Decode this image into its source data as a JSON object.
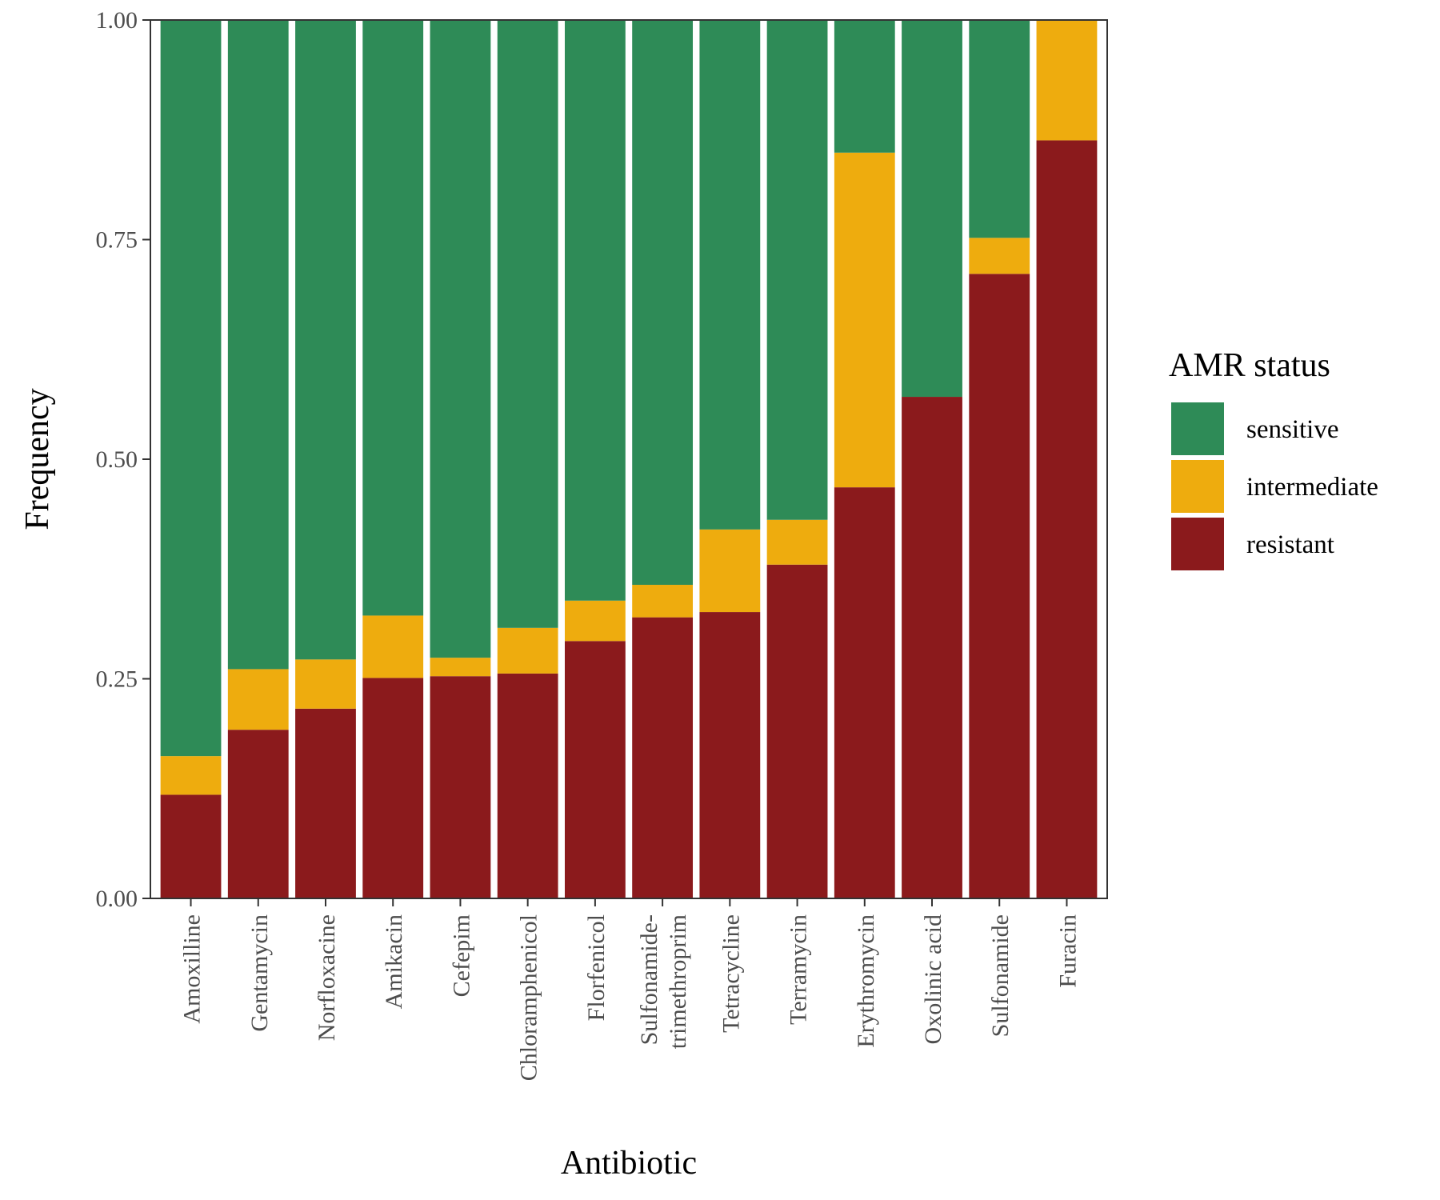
{
  "chart_data": {
    "type": "bar",
    "stacked": true,
    "xlabel": "Antibiotic",
    "ylabel": "Frequency",
    "ylim": [
      0,
      1
    ],
    "yticks": [
      "0.00",
      "0.25",
      "0.50",
      "0.75",
      "1.00"
    ],
    "grid": false,
    "categories": [
      "Amoxilline",
      "Gentamycin",
      "Norfloxacine",
      "Amikacin",
      "Cefepim",
      "Chloramphenicol",
      "Florfenicol",
      "Sulfonamide-\ntrimethroprim",
      "Tetracycline",
      "Terramycin",
      "Erythromycin",
      "Oxolinic acid",
      "Sulfonamide",
      "Furacin"
    ],
    "series": [
      {
        "name": "resistant",
        "color": "#8b1a1c",
        "values": [
          0.118,
          0.192,
          0.216,
          0.251,
          0.253,
          0.256,
          0.293,
          0.32,
          0.326,
          0.38,
          0.468,
          0.571,
          0.711,
          0.863
        ]
      },
      {
        "name": "intermediate",
        "color": "#eeac0e",
        "values": [
          0.044,
          0.069,
          0.056,
          0.071,
          0.021,
          0.052,
          0.046,
          0.037,
          0.094,
          0.051,
          0.381,
          0.0,
          0.041,
          0.137
        ]
      },
      {
        "name": "sensitive",
        "color": "#2e8b57",
        "values": [
          0.838,
          0.739,
          0.728,
          0.678,
          0.726,
          0.692,
          0.661,
          0.643,
          0.58,
          0.569,
          0.151,
          0.429,
          0.248,
          0.0
        ]
      }
    ],
    "legend": {
      "title": "AMR status",
      "position": "right",
      "order": [
        "sensitive",
        "intermediate",
        "resistant"
      ]
    }
  }
}
